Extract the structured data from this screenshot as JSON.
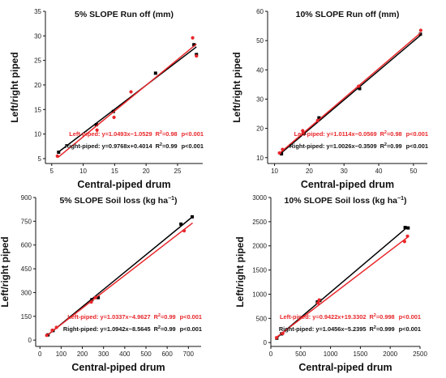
{
  "chart_data": [
    {
      "type": "scatter",
      "title_main": "5% SLOPE Run off (mm)",
      "title_unit_base": "",
      "title_unit_sup": "",
      "xlabel": "Central-piped drum",
      "ylabel": "Left/right piped",
      "xlim": [
        4,
        29
      ],
      "ylim": [
        4,
        35
      ],
      "xticks": [
        5,
        10,
        15,
        20,
        25
      ],
      "yticks": [
        5,
        10,
        15,
        20,
        25,
        30,
        35
      ],
      "series": [
        {
          "color": "#000000",
          "slope": 0.9768,
          "intercept": 0.4014,
          "x_range": [
            6,
            28
          ],
          "points": [
            [
              6.1,
              6.3
            ],
            [
              12.1,
              11.9
            ],
            [
              14.8,
              14.6
            ],
            [
              21.5,
              22.4
            ],
            [
              27.6,
              28.2
            ],
            [
              28,
              26.2
            ]
          ]
        },
        {
          "color": "#e8262a",
          "slope": 1.0493,
          "intercept": -1.0529,
          "x_range": [
            6,
            28
          ],
          "points": [
            [
              5.9,
              5.5
            ],
            [
              12.2,
              10.8
            ],
            [
              14.9,
              13.4
            ],
            [
              17.6,
              18.6
            ],
            [
              27.4,
              29.6
            ],
            [
              28,
              25.9
            ]
          ]
        }
      ],
      "equations": [
        {
          "color": "#e8262a",
          "prefix": "Left-piped: y=1.0493x−1.0529",
          "r_base": "R",
          "r_sup": "2",
          "r_rest": "=0.98",
          "p": "p<0.001"
        },
        {
          "color": "#111111",
          "prefix": "Right-piped: y=0.9768x+0.4014",
          "r_base": "R",
          "r_sup": "2",
          "r_rest": "=0.99",
          "p": "p<0.001"
        }
      ]
    },
    {
      "type": "scatter",
      "title_main": "10% SLOPE Run off (mm)",
      "title_unit_base": "",
      "title_unit_sup": "",
      "xlabel": "Central-piped drum",
      "ylabel": "Left/right piped",
      "xlim": [
        8,
        54
      ],
      "ylim": [
        8,
        60
      ],
      "xticks": [
        10,
        20,
        30,
        40,
        50
      ],
      "yticks": [
        10,
        20,
        30,
        40,
        50,
        60
      ],
      "series": [
        {
          "color": "#000000",
          "slope": 1.0026,
          "intercept": -0.3509,
          "x_range": [
            11.5,
            52
          ],
          "points": [
            [
              12,
              11.3
            ],
            [
              18.5,
              18.3
            ],
            [
              22.8,
              23.6
            ],
            [
              34.5,
              33.6
            ],
            [
              52,
              52.2
            ]
          ]
        },
        {
          "color": "#e8262a",
          "slope": 1.0114,
          "intercept": -0.0569,
          "x_range": [
            11.5,
            52
          ],
          "points": [
            [
              11.4,
              11.6
            ],
            [
              12.3,
              12.8
            ],
            [
              18.1,
              19.2
            ],
            [
              22.4,
              22.7
            ],
            [
              34.2,
              34.4
            ],
            [
              52.1,
              53.5
            ]
          ]
        }
      ],
      "equations": [
        {
          "color": "#e8262a",
          "prefix": "Left-piped: y=1.0114x−0.0569",
          "r_base": "R",
          "r_sup": "2",
          "r_rest": "=0.98",
          "p": "p<0.001"
        },
        {
          "color": "#111111",
          "prefix": "Right-piped: y=1.0026x−0.3509",
          "r_base": "R",
          "r_sup": "2",
          "r_rest": "=0.99",
          "p": "p<0.001"
        }
      ]
    },
    {
      "type": "scatter",
      "title_main": "5% SLOPE Soil loss (kg ha",
      "title_unit_base": "",
      "title_unit_sup": "−1",
      "title_close": ")",
      "xlabel": "Central-piped drum",
      "ylabel": "Left/right piped",
      "xlim": [
        -20,
        760
      ],
      "ylim": [
        -40,
        900
      ],
      "xticks": [
        0,
        100,
        200,
        300,
        400,
        500,
        600,
        700
      ],
      "yticks": [
        0,
        150,
        300,
        450,
        600,
        750,
        900
      ],
      "series": [
        {
          "color": "#000000",
          "slope": 1.0942,
          "intercept": -8.5645,
          "x_range": [
            30,
            720
          ],
          "points": [
            [
              38,
              33
            ],
            [
              62,
              60
            ],
            [
              245,
              255
            ],
            [
              275,
              268
            ],
            [
              665,
              732
            ],
            [
              718,
              778
            ]
          ]
        },
        {
          "color": "#e8262a",
          "slope": 1.0337,
          "intercept": -4.9627,
          "x_range": [
            30,
            720
          ],
          "points": [
            [
              32,
              30
            ],
            [
              58,
              62
            ],
            [
              78,
              80
            ],
            [
              242,
              240
            ],
            [
              262,
              268
            ],
            [
              680,
              690
            ]
          ]
        }
      ],
      "equations": [
        {
          "color": "#e8262a",
          "prefix": "Left-piped: y=1.0337x−4.9627",
          "r_base": "R",
          "r_sup": "2",
          "r_rest": "=0.99",
          "p": "p<0.001"
        },
        {
          "color": "#111111",
          "prefix": "Right-piped: y=1.0942x−8.5645",
          "r_base": "R",
          "r_sup": "2",
          "r_rest": "=0.99",
          "p": "p<0.001"
        }
      ]
    },
    {
      "type": "scatter",
      "title_main": "10% SLOPE Soil loss (kg ha",
      "title_unit_base": "",
      "title_unit_sup": "−1",
      "title_close": ")",
      "xlabel": "Central-piped drum",
      "ylabel": "Left/right piped",
      "xlim": [
        0,
        2500
      ],
      "ylim": [
        -80,
        3000
      ],
      "xticks": [
        0,
        500,
        1000,
        1500,
        2000,
        2500
      ],
      "yticks": [
        0,
        500,
        1000,
        1500,
        2000,
        2500,
        3000
      ],
      "series": [
        {
          "color": "#000000",
          "slope": 1.0456,
          "intercept": -5.2395,
          "x_range": [
            90,
            2290
          ],
          "points": [
            [
              100,
              90
            ],
            [
              180,
              180
            ],
            [
              780,
              840
            ],
            [
              820,
              870
            ],
            [
              2250,
              2380
            ],
            [
              2300,
              2370
            ]
          ]
        },
        {
          "color": "#e8262a",
          "slope": 0.9422,
          "intercept": 19.3302,
          "x_range": [
            90,
            2290
          ],
          "points": [
            [
              95,
              100
            ],
            [
              200,
              190
            ],
            [
              790,
              820
            ],
            [
              810,
              880
            ],
            [
              2240,
              2090
            ],
            [
              2290,
              2200
            ]
          ]
        }
      ],
      "equations": [
        {
          "color": "#e8262a",
          "prefix": "Left-piped: y=0.9422x+19.3302",
          "r_base": "R",
          "r_sup": "2",
          "r_rest": "=0.998",
          "p": "p<0.001"
        },
        {
          "color": "#111111",
          "prefix": "Right-piped: y=1.0456x−5.2395",
          "r_base": "R",
          "r_sup": "2",
          "r_rest": "=0.999",
          "p": "p<0.001"
        }
      ]
    }
  ]
}
